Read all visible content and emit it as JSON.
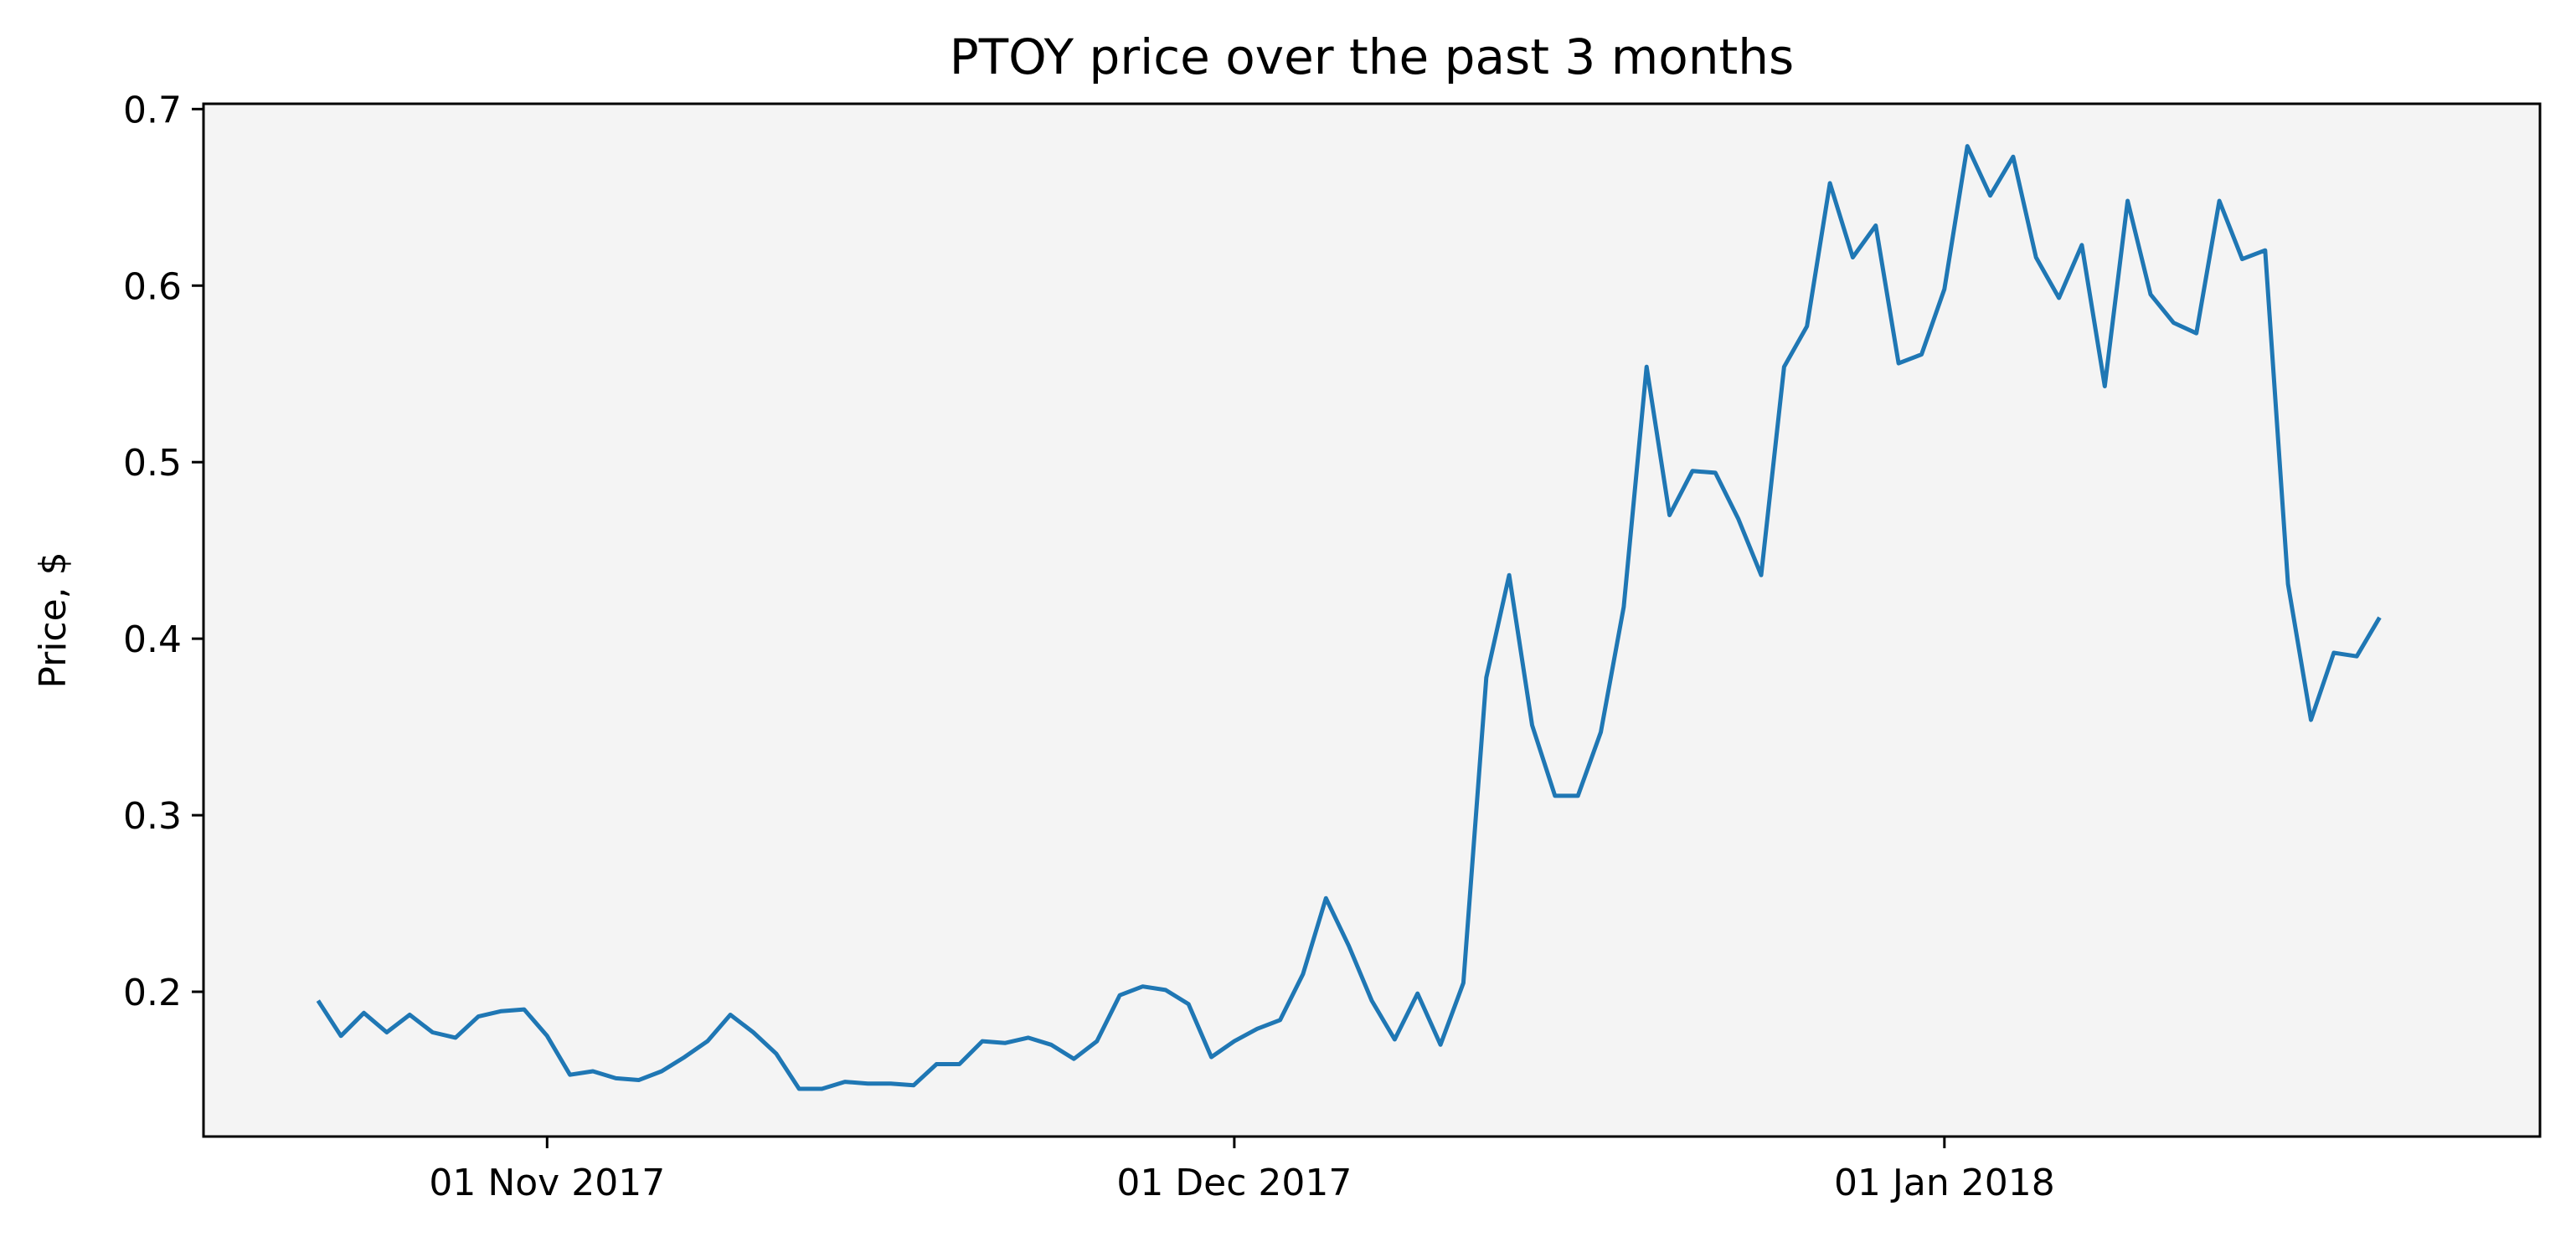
{
  "chart_data": {
    "type": "line",
    "title": "PTOY price over the past 3 months",
    "xlabel": "",
    "ylabel": "Price, $",
    "x_ticks": [
      "2017-11-01",
      "2017-12-01",
      "2018-01-01"
    ],
    "x_tick_labels": [
      "01 Nov 2017",
      "01 Dec 2017",
      "01 Jan 2018"
    ],
    "x_range": [
      "2017-10-17",
      "2018-01-27"
    ],
    "y_ticks": [
      0.2,
      0.3,
      0.4,
      0.5,
      0.6,
      0.7
    ],
    "y_tick_labels": [
      "0.2",
      "0.3",
      "0.4",
      "0.5",
      "0.6",
      "0.7"
    ],
    "ylim": [
      0.118,
      0.703
    ],
    "grid": false,
    "plot_background": "#f4f4f4",
    "series": [
      {
        "name": "",
        "color": "#1f77b4",
        "points": [
          [
            "2017-10-22",
            0.195
          ],
          [
            "2017-10-23",
            0.175
          ],
          [
            "2017-10-24",
            0.188
          ],
          [
            "2017-10-25",
            0.177
          ],
          [
            "2017-10-26",
            0.187
          ],
          [
            "2017-10-27",
            0.177
          ],
          [
            "2017-10-28",
            0.174
          ],
          [
            "2017-10-29",
            0.186
          ],
          [
            "2017-10-30",
            0.189
          ],
          [
            "2017-10-31",
            0.19
          ],
          [
            "2017-11-01",
            0.175
          ],
          [
            "2017-11-02",
            0.153
          ],
          [
            "2017-11-03",
            0.155
          ],
          [
            "2017-11-04",
            0.151
          ],
          [
            "2017-11-05",
            0.15
          ],
          [
            "2017-11-06",
            0.155
          ],
          [
            "2017-11-07",
            0.163
          ],
          [
            "2017-11-08",
            0.172
          ],
          [
            "2017-11-09",
            0.187
          ],
          [
            "2017-11-10",
            0.177
          ],
          [
            "2017-11-11",
            0.165
          ],
          [
            "2017-11-12",
            0.145
          ],
          [
            "2017-11-13",
            0.145
          ],
          [
            "2017-11-14",
            0.149
          ],
          [
            "2017-11-15",
            0.148
          ],
          [
            "2017-11-16",
            0.148
          ],
          [
            "2017-11-17",
            0.147
          ],
          [
            "2017-11-18",
            0.159
          ],
          [
            "2017-11-19",
            0.159
          ],
          [
            "2017-11-20",
            0.172
          ],
          [
            "2017-11-21",
            0.171
          ],
          [
            "2017-11-22",
            0.174
          ],
          [
            "2017-11-23",
            0.17
          ],
          [
            "2017-11-24",
            0.162
          ],
          [
            "2017-11-25",
            0.172
          ],
          [
            "2017-11-26",
            0.198
          ],
          [
            "2017-11-27",
            0.203
          ],
          [
            "2017-11-28",
            0.201
          ],
          [
            "2017-11-29",
            0.193
          ],
          [
            "2017-11-30",
            0.163
          ],
          [
            "2017-12-01",
            0.172
          ],
          [
            "2017-12-02",
            0.179
          ],
          [
            "2017-12-03",
            0.184
          ],
          [
            "2017-12-04",
            0.21
          ],
          [
            "2017-12-05",
            0.253
          ],
          [
            "2017-12-06",
            0.226
          ],
          [
            "2017-12-07",
            0.195
          ],
          [
            "2017-12-08",
            0.173
          ],
          [
            "2017-12-09",
            0.199
          ],
          [
            "2017-12-10",
            0.17
          ],
          [
            "2017-12-11",
            0.205
          ],
          [
            "2017-12-12",
            0.378
          ],
          [
            "2017-12-13",
            0.436
          ],
          [
            "2017-12-14",
            0.351
          ],
          [
            "2017-12-15",
            0.311
          ],
          [
            "2017-12-16",
            0.311
          ],
          [
            "2017-12-17",
            0.347
          ],
          [
            "2017-12-18",
            0.418
          ],
          [
            "2017-12-19",
            0.554
          ],
          [
            "2017-12-20",
            0.47
          ],
          [
            "2017-12-21",
            0.495
          ],
          [
            "2017-12-22",
            0.494
          ],
          [
            "2017-12-23",
            0.468
          ],
          [
            "2017-12-24",
            0.436
          ],
          [
            "2017-12-25",
            0.554
          ],
          [
            "2017-12-26",
            0.577
          ],
          [
            "2017-12-27",
            0.658
          ],
          [
            "2017-12-28",
            0.616
          ],
          [
            "2017-12-29",
            0.634
          ],
          [
            "2017-12-30",
            0.556
          ],
          [
            "2017-12-31",
            0.561
          ],
          [
            "2018-01-01",
            0.598
          ],
          [
            "2018-01-02",
            0.679
          ],
          [
            "2018-01-03",
            0.651
          ],
          [
            "2018-01-04",
            0.673
          ],
          [
            "2018-01-05",
            0.616
          ],
          [
            "2018-01-06",
            0.593
          ],
          [
            "2018-01-07",
            0.623
          ],
          [
            "2018-01-08",
            0.543
          ],
          [
            "2018-01-09",
            0.648
          ],
          [
            "2018-01-10",
            0.595
          ],
          [
            "2018-01-11",
            0.579
          ],
          [
            "2018-01-12",
            0.573
          ],
          [
            "2018-01-13",
            0.648
          ],
          [
            "2018-01-14",
            0.615
          ],
          [
            "2018-01-15",
            0.62
          ],
          [
            "2018-01-16",
            0.431
          ],
          [
            "2018-01-17",
            0.354
          ],
          [
            "2018-01-18",
            0.392
          ],
          [
            "2018-01-19",
            0.39
          ],
          [
            "2018-01-20",
            0.412
          ]
        ]
      }
    ]
  }
}
